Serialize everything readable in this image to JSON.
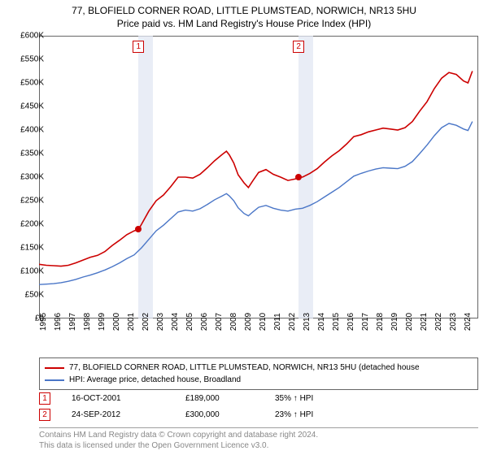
{
  "title_line1": "77, BLOFIELD CORNER ROAD, LITTLE PLUMSTEAD, NORWICH, NR13 5HU",
  "title_line2": "Price paid vs. HM Land Registry's House Price Index (HPI)",
  "chart": {
    "type": "line",
    "background_color": "#ffffff",
    "border_color": "#666666",
    "band_color": "#e1e7f3",
    "x_years": [
      1995,
      1996,
      1997,
      1998,
      1999,
      2000,
      2001,
      2002,
      2003,
      2004,
      2005,
      2006,
      2007,
      2008,
      2009,
      2010,
      2011,
      2012,
      2013,
      2014,
      2015,
      2016,
      2017,
      2018,
      2019,
      2020,
      2021,
      2022,
      2023,
      2024
    ],
    "xlim": [
      1995,
      2025
    ],
    "ylim": [
      0,
      600000
    ],
    "ytick_step": 50000,
    "ytick_labels": [
      "£0",
      "£50K",
      "£100K",
      "£150K",
      "£200K",
      "£250K",
      "£300K",
      "£350K",
      "£400K",
      "£450K",
      "£500K",
      "£550K",
      "£600K"
    ],
    "series": [
      {
        "name": "price_paid",
        "color": "#cc0000",
        "line_width": 1.6,
        "points": [
          [
            1995.0,
            115000
          ],
          [
            1995.5,
            113000
          ],
          [
            1996.0,
            112000
          ],
          [
            1996.5,
            111000
          ],
          [
            1997.0,
            113000
          ],
          [
            1997.5,
            118000
          ],
          [
            1998.0,
            124000
          ],
          [
            1998.5,
            130000
          ],
          [
            1999.0,
            134000
          ],
          [
            1999.5,
            142000
          ],
          [
            2000.0,
            155000
          ],
          [
            2000.5,
            166000
          ],
          [
            2001.0,
            178000
          ],
          [
            2001.5,
            186000
          ],
          [
            2001.79,
            189000
          ],
          [
            2002.0,
            200000
          ],
          [
            2002.5,
            228000
          ],
          [
            2003.0,
            250000
          ],
          [
            2003.5,
            262000
          ],
          [
            2004.0,
            280000
          ],
          [
            2004.5,
            300000
          ],
          [
            2005.0,
            300000
          ],
          [
            2005.5,
            298000
          ],
          [
            2006.0,
            306000
          ],
          [
            2006.5,
            320000
          ],
          [
            2007.0,
            335000
          ],
          [
            2007.5,
            348000
          ],
          [
            2007.8,
            355000
          ],
          [
            2008.0,
            347000
          ],
          [
            2008.3,
            330000
          ],
          [
            2008.6,
            305000
          ],
          [
            2009.0,
            288000
          ],
          [
            2009.3,
            278000
          ],
          [
            2009.6,
            292000
          ],
          [
            2010.0,
            310000
          ],
          [
            2010.5,
            316000
          ],
          [
            2011.0,
            306000
          ],
          [
            2011.5,
            300000
          ],
          [
            2012.0,
            293000
          ],
          [
            2012.5,
            296000
          ],
          [
            2012.73,
            300000
          ],
          [
            2013.0,
            300000
          ],
          [
            2013.5,
            308000
          ],
          [
            2014.0,
            318000
          ],
          [
            2014.5,
            332000
          ],
          [
            2015.0,
            345000
          ],
          [
            2015.5,
            356000
          ],
          [
            2016.0,
            370000
          ],
          [
            2016.5,
            386000
          ],
          [
            2017.0,
            390000
          ],
          [
            2017.5,
            396000
          ],
          [
            2018.0,
            400000
          ],
          [
            2018.5,
            404000
          ],
          [
            2019.0,
            402000
          ],
          [
            2019.5,
            400000
          ],
          [
            2020.0,
            405000
          ],
          [
            2020.5,
            418000
          ],
          [
            2021.0,
            440000
          ],
          [
            2021.5,
            460000
          ],
          [
            2022.0,
            488000
          ],
          [
            2022.5,
            510000
          ],
          [
            2023.0,
            522000
          ],
          [
            2023.5,
            518000
          ],
          [
            2024.0,
            504000
          ],
          [
            2024.3,
            500000
          ],
          [
            2024.6,
            525000
          ]
        ]
      },
      {
        "name": "hpi",
        "color": "#4a76c7",
        "line_width": 1.4,
        "points": [
          [
            1995.0,
            72000
          ],
          [
            1995.5,
            73000
          ],
          [
            1996.0,
            74000
          ],
          [
            1996.5,
            76000
          ],
          [
            1997.0,
            79000
          ],
          [
            1997.5,
            83000
          ],
          [
            1998.0,
            88000
          ],
          [
            1998.5,
            92000
          ],
          [
            1999.0,
            97000
          ],
          [
            1999.5,
            103000
          ],
          [
            2000.0,
            110000
          ],
          [
            2000.5,
            118000
          ],
          [
            2001.0,
            127000
          ],
          [
            2001.5,
            135000
          ],
          [
            2002.0,
            150000
          ],
          [
            2002.5,
            168000
          ],
          [
            2003.0,
            186000
          ],
          [
            2003.5,
            198000
          ],
          [
            2004.0,
            212000
          ],
          [
            2004.5,
            226000
          ],
          [
            2005.0,
            230000
          ],
          [
            2005.5,
            228000
          ],
          [
            2006.0,
            233000
          ],
          [
            2006.5,
            242000
          ],
          [
            2007.0,
            252000
          ],
          [
            2007.5,
            260000
          ],
          [
            2007.8,
            265000
          ],
          [
            2008.0,
            260000
          ],
          [
            2008.3,
            250000
          ],
          [
            2008.6,
            235000
          ],
          [
            2009.0,
            223000
          ],
          [
            2009.3,
            218000
          ],
          [
            2009.6,
            226000
          ],
          [
            2010.0,
            236000
          ],
          [
            2010.5,
            240000
          ],
          [
            2011.0,
            234000
          ],
          [
            2011.5,
            230000
          ],
          [
            2012.0,
            228000
          ],
          [
            2012.5,
            232000
          ],
          [
            2013.0,
            234000
          ],
          [
            2013.5,
            240000
          ],
          [
            2014.0,
            248000
          ],
          [
            2014.5,
            258000
          ],
          [
            2015.0,
            268000
          ],
          [
            2015.5,
            278000
          ],
          [
            2016.0,
            290000
          ],
          [
            2016.5,
            302000
          ],
          [
            2017.0,
            308000
          ],
          [
            2017.5,
            313000
          ],
          [
            2018.0,
            317000
          ],
          [
            2018.5,
            320000
          ],
          [
            2019.0,
            319000
          ],
          [
            2019.5,
            318000
          ],
          [
            2020.0,
            323000
          ],
          [
            2020.5,
            333000
          ],
          [
            2021.0,
            350000
          ],
          [
            2021.5,
            368000
          ],
          [
            2022.0,
            388000
          ],
          [
            2022.5,
            405000
          ],
          [
            2023.0,
            414000
          ],
          [
            2023.5,
            410000
          ],
          [
            2024.0,
            402000
          ],
          [
            2024.3,
            399000
          ],
          [
            2024.6,
            418000
          ]
        ]
      }
    ],
    "bands": [
      {
        "start": 2001.79,
        "end": 2002.79
      },
      {
        "start": 2012.73,
        "end": 2013.73
      }
    ],
    "sale_markers": [
      {
        "label": "1",
        "x": 2001.79,
        "y": 189000,
        "color": "#cc0000"
      },
      {
        "label": "2",
        "x": 2012.73,
        "y": 300000,
        "color": "#cc0000"
      }
    ]
  },
  "legend": {
    "items": [
      {
        "color": "#cc0000",
        "label": "77, BLOFIELD CORNER ROAD, LITTLE PLUMSTEAD, NORWICH, NR13 5HU (detached house"
      },
      {
        "color": "#4a76c7",
        "label": "HPI: Average price, detached house, Broadland"
      }
    ]
  },
  "sales": [
    {
      "num": "1",
      "color": "#cc0000",
      "date": "16-OCT-2001",
      "price": "£189,000",
      "diff": "35% ↑ HPI"
    },
    {
      "num": "2",
      "color": "#cc0000",
      "date": "24-SEP-2012",
      "price": "£300,000",
      "diff": "23% ↑ HPI"
    }
  ],
  "attribution": {
    "line1": "Contains HM Land Registry data © Crown copyright and database right 2024.",
    "line2": "This data is licensed under the Open Government Licence v3.0."
  }
}
